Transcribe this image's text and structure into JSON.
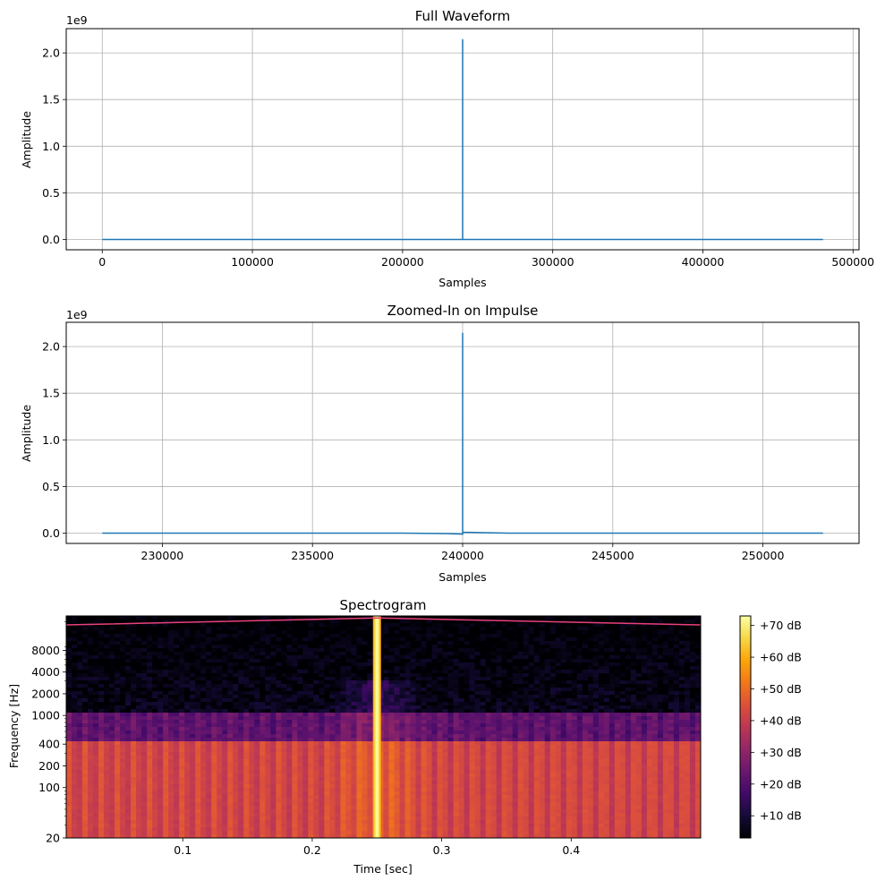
{
  "chart_data": [
    {
      "type": "line",
      "title": "Full Waveform",
      "xlabel": "Samples",
      "ylabel": "Amplitude",
      "y_offset_label": "1e9",
      "xlim": [
        -24000,
        504000
      ],
      "ylim": [
        -0.11,
        2.26
      ],
      "grid": true,
      "x_ticks": [
        0,
        100000,
        200000,
        300000,
        400000,
        500000
      ],
      "x_tick_labels": [
        "0",
        "100000",
        "200000",
        "300000",
        "400000",
        "500000"
      ],
      "y_ticks": [
        0.0,
        0.5,
        1.0,
        1.5,
        2.0
      ],
      "y_tick_labels": [
        "0.0",
        "0.5",
        "1.0",
        "1.5",
        "2.0"
      ],
      "color": "#1f77b4",
      "series": [
        {
          "x": [
            0,
            239999,
            240000,
            240000,
            240001,
            480000
          ],
          "y": [
            0,
            0,
            0,
            2.147,
            0,
            0
          ]
        }
      ]
    },
    {
      "type": "line",
      "title": "Zoomed-In on Impulse",
      "xlabel": "Samples",
      "ylabel": "Amplitude",
      "y_offset_label": "1e9",
      "xlim": [
        226800,
        253200
      ],
      "ylim": [
        -0.11,
        2.26
      ],
      "grid": true,
      "x_ticks": [
        230000,
        235000,
        240000,
        245000,
        250000
      ],
      "x_tick_labels": [
        "230000",
        "235000",
        "240000",
        "245000",
        "250000"
      ],
      "y_ticks": [
        0.0,
        0.5,
        1.0,
        1.5,
        2.0
      ],
      "y_tick_labels": [
        "0.0",
        "0.5",
        "1.0",
        "1.5",
        "2.0"
      ],
      "color": "#1f77b4",
      "series": [
        {
          "x": [
            228000,
            238000,
            239500,
            239999,
            240000,
            240000,
            240001,
            241500,
            252000
          ],
          "y": [
            0,
            0,
            -0.005,
            -0.01,
            -0.01,
            2.147,
            0.01,
            0,
            0
          ]
        }
      ]
    },
    {
      "type": "heatmap",
      "title": "Spectrogram",
      "xlabel": "Time [sec]",
      "ylabel": "Frequency [Hz]",
      "xlim": [
        0.01,
        0.5
      ],
      "y_scale": "log",
      "ylim": [
        20,
        24000
      ],
      "x_ticks": [
        0.1,
        0.2,
        0.3,
        0.4
      ],
      "x_tick_labels": [
        "0.1",
        "0.2",
        "0.3",
        "0.4"
      ],
      "y_ticks": [
        20,
        100,
        200,
        400,
        1000,
        2000,
        4000,
        8000
      ],
      "y_tick_labels": [
        "20",
        "100",
        "200",
        "400",
        "1000",
        "2000",
        "4000",
        "8000"
      ],
      "colormap": "inferno",
      "colorbar": {
        "range_db": [
          3,
          73
        ],
        "ticks": [
          10,
          20,
          30,
          40,
          50,
          60,
          70
        ],
        "tick_labels": [
          "+10 dB",
          "+20 dB",
          "+30 dB",
          "+40 dB",
          "+50 dB",
          "+60 dB",
          "+70 dB"
        ]
      },
      "impulse_time": 0.25,
      "band_levels_db": {
        "below_400hz": 42,
        "400_to_1000hz": 22,
        "above_1000hz": 6,
        "near_impulse_low": 48,
        "impulse": 72
      },
      "overlay_line": {
        "color": "#e8407a",
        "x": [
          0.01,
          0.25,
          0.5
        ],
        "y": [
          18000,
          22500,
          18000
        ]
      }
    }
  ]
}
